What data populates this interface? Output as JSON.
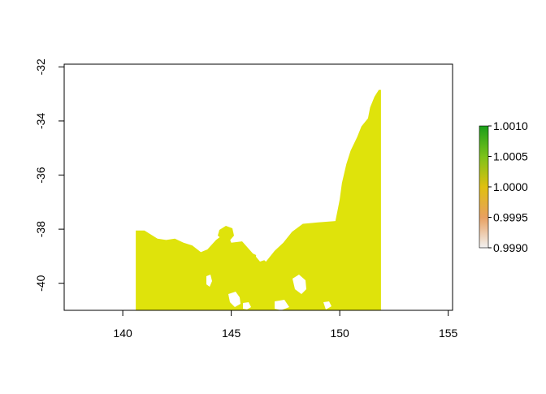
{
  "colors": {
    "land": "#DFE30B",
    "axis": "#000000",
    "legend_top": "#1A9E1A",
    "legend_upper": "#7CC21A",
    "legend_mid": "#E0C010",
    "legend_lower": "#E8A060",
    "legend_bottom": "#F2F2F2"
  },
  "chart_data": {
    "type": "heatmap",
    "title": "",
    "xlabel": "",
    "ylabel": "",
    "xlim": [
      137.3,
      155.2
    ],
    "ylim": [
      -41.0,
      -31.9
    ],
    "x_ticks": [
      140,
      145,
      150,
      155
    ],
    "y_ticks": [
      -32,
      -34,
      -36,
      -38,
      -40
    ],
    "x_tick_labels": [
      "140",
      "145",
      "150",
      "155"
    ],
    "y_tick_labels": [
      "-32",
      "-34",
      "-36",
      "-38",
      "-40"
    ],
    "raster_value": 1.0,
    "raster_extent": {
      "lon": [
        140.6,
        151.9
      ],
      "lat": [
        -41.0,
        -32.85
      ]
    },
    "coastline": [
      [
        140.6,
        -38.05
      ],
      [
        141.0,
        -38.05
      ],
      [
        141.3,
        -38.2
      ],
      [
        141.6,
        -38.35
      ],
      [
        142.0,
        -38.4
      ],
      [
        142.4,
        -38.35
      ],
      [
        142.8,
        -38.5
      ],
      [
        143.2,
        -38.6
      ],
      [
        143.6,
        -38.85
      ],
      [
        143.9,
        -38.75
      ],
      [
        144.3,
        -38.4
      ],
      [
        144.8,
        -38.1
      ],
      [
        145.0,
        -38.5
      ],
      [
        145.5,
        -38.45
      ],
      [
        146.0,
        -38.9
      ],
      [
        146.4,
        -39.05
      ],
      [
        146.6,
        -39.2
      ],
      [
        147.0,
        -38.8
      ],
      [
        147.4,
        -38.5
      ],
      [
        147.8,
        -38.1
      ],
      [
        148.3,
        -37.8
      ],
      [
        149.0,
        -37.75
      ],
      [
        149.8,
        -37.7
      ],
      [
        149.9,
        -37.3
      ],
      [
        150.0,
        -36.9
      ],
      [
        150.1,
        -36.3
      ],
      [
        150.3,
        -35.6
      ],
      [
        150.5,
        -35.1
      ],
      [
        150.8,
        -34.6
      ],
      [
        151.0,
        -34.2
      ],
      [
        151.3,
        -33.9
      ],
      [
        151.4,
        -33.5
      ],
      [
        151.6,
        -33.1
      ],
      [
        151.8,
        -32.85
      ],
      [
        151.9,
        -32.85
      ]
    ],
    "legend": {
      "type": "colorbar",
      "min": 0.999,
      "max": 1.001,
      "ticks": [
        0.999,
        0.9995,
        1.0,
        1.0005,
        1.001
      ],
      "tick_labels": [
        "0.9990",
        "0.9995",
        "1.0000",
        "1.0005",
        "1.0010"
      ]
    }
  }
}
